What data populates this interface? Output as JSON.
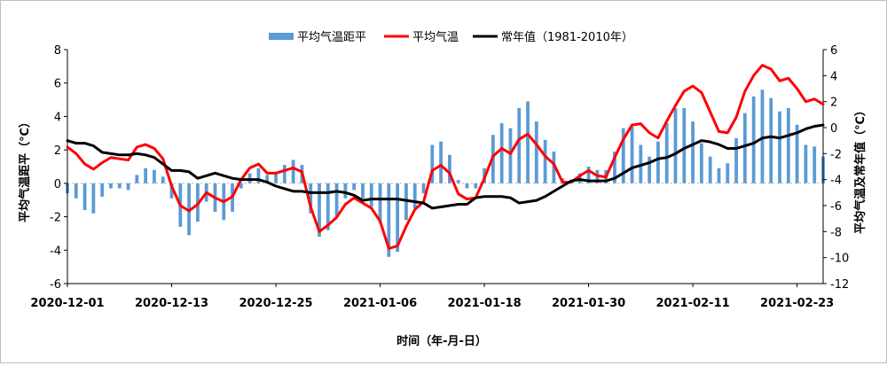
{
  "chart_data": {
    "type": "bar+line",
    "xlabel": "时间（年-月-日）",
    "ylabel_left": "平均气温距平（℃）",
    "ylabel_right": "平均气温及常年值（℃）",
    "ylim_left": [
      -6,
      8
    ],
    "yticks_left": [
      -6,
      -4,
      -2,
      0,
      2,
      4,
      6,
      8
    ],
    "ylim_right": [
      -12,
      6
    ],
    "yticks_right": [
      -12,
      -10,
      -8,
      -6,
      -4,
      -2,
      0,
      2,
      4,
      6
    ],
    "x_tick_labels": [
      "2020-12-01",
      "2020-12-13",
      "2020-12-25",
      "2021-01-06",
      "2021-01-18",
      "2021-01-30",
      "2021-02-11",
      "2021-02-23"
    ],
    "x_tick_interval_days": 12,
    "legend_position": "top",
    "series": [
      {
        "name": "平均气温距平",
        "type": "bar",
        "axis": "left",
        "color": "#5B9BD5",
        "values": [
          -0.6,
          -0.9,
          -1.6,
          -1.8,
          -0.8,
          -0.3,
          -0.3,
          -0.4,
          0.5,
          0.9,
          0.8,
          0.4,
          -0.9,
          -2.6,
          -3.1,
          -2.3,
          -1.1,
          -1.7,
          -2.2,
          -1.7,
          -0.3,
          0.6,
          0.9,
          0.5,
          0.6,
          1.1,
          1.4,
          1.1,
          -1.8,
          -3.2,
          -2.8,
          -2.0,
          -0.9,
          -0.4,
          -0.9,
          -1.4,
          -2.4,
          -4.4,
          -4.1,
          -2.2,
          -1.5,
          -0.6,
          2.3,
          2.5,
          1.7,
          0.2,
          -0.3,
          -0.3,
          0.9,
          2.9,
          3.6,
          3.3,
          4.5,
          4.9,
          3.7,
          2.6,
          1.9,
          0.3,
          0.1,
          0.6,
          1.0,
          0.8,
          0.8,
          1.9,
          3.3,
          3.4,
          2.3,
          1.6,
          2.5,
          3.6,
          4.5,
          4.5,
          3.7,
          2.4,
          1.6,
          0.9,
          1.2,
          2.7,
          4.2,
          5.2,
          5.6,
          5.1,
          4.3,
          4.5,
          3.5,
          2.3,
          2.2,
          1.6
        ]
      },
      {
        "name": "平均气温",
        "type": "line",
        "axis": "right",
        "color": "#FF0000",
        "values": [
          -1.5,
          -2.0,
          -2.8,
          -3.2,
          -2.7,
          -2.3,
          -2.4,
          -2.5,
          -1.5,
          -1.3,
          -1.6,
          -2.4,
          -4.5,
          -6.0,
          -6.4,
          -5.9,
          -5.0,
          -5.4,
          -5.7,
          -5.3,
          -4.0,
          -3.1,
          -2.8,
          -3.5,
          -3.5,
          -3.3,
          -3.1,
          -3.4,
          -6.1,
          -8.0,
          -7.5,
          -6.9,
          -5.9,
          -5.4,
          -5.8,
          -6.2,
          -7.2,
          -9.3,
          -9.1,
          -7.6,
          -6.3,
          -5.7,
          -3.3,
          -2.9,
          -3.5,
          -5.1,
          -5.5,
          -5.4,
          -3.9,
          -2.2,
          -1.6,
          -2.0,
          -0.9,
          -0.5,
          -1.3,
          -2.2,
          -2.8,
          -4.2,
          -4.2,
          -3.7,
          -3.3,
          -3.7,
          -3.8,
          -2.3,
          -0.9,
          0.2,
          0.3,
          -0.4,
          -0.8,
          0.5,
          1.7,
          2.8,
          3.2,
          2.7,
          1.2,
          -0.3,
          -0.4,
          0.8,
          2.8,
          4.0,
          4.8,
          4.5,
          3.6,
          3.8,
          3.0,
          2.0,
          2.2,
          1.8
        ]
      },
      {
        "name": "常年值（1981-2010年）",
        "type": "line",
        "axis": "right",
        "color": "#000000",
        "values": [
          -1.0,
          -1.2,
          -1.2,
          -1.4,
          -1.9,
          -2.0,
          -2.1,
          -2.1,
          -2.0,
          -2.1,
          -2.3,
          -2.8,
          -3.3,
          -3.3,
          -3.4,
          -3.9,
          -3.7,
          -3.5,
          -3.7,
          -3.9,
          -4.0,
          -4.0,
          -4.0,
          -4.2,
          -4.5,
          -4.7,
          -4.9,
          -4.9,
          -5.0,
          -5.0,
          -5.0,
          -4.9,
          -5.0,
          -5.2,
          -5.6,
          -5.5,
          -5.5,
          -5.5,
          -5.5,
          -5.6,
          -5.7,
          -5.8,
          -6.2,
          -6.1,
          -6.0,
          -5.9,
          -5.9,
          -5.4,
          -5.3,
          -5.3,
          -5.3,
          -5.4,
          -5.8,
          -5.7,
          -5.6,
          -5.3,
          -4.9,
          -4.5,
          -4.1,
          -4.0,
          -4.1,
          -4.1,
          -4.1,
          -3.9,
          -3.5,
          -3.1,
          -2.9,
          -2.7,
          -2.4,
          -2.3,
          -2.0,
          -1.6,
          -1.3,
          -1.0,
          -1.1,
          -1.3,
          -1.6,
          -1.6,
          -1.4,
          -1.2,
          -0.8,
          -0.7,
          -0.8,
          -0.6,
          -0.4,
          -0.1,
          0.1,
          0.2
        ]
      }
    ]
  }
}
